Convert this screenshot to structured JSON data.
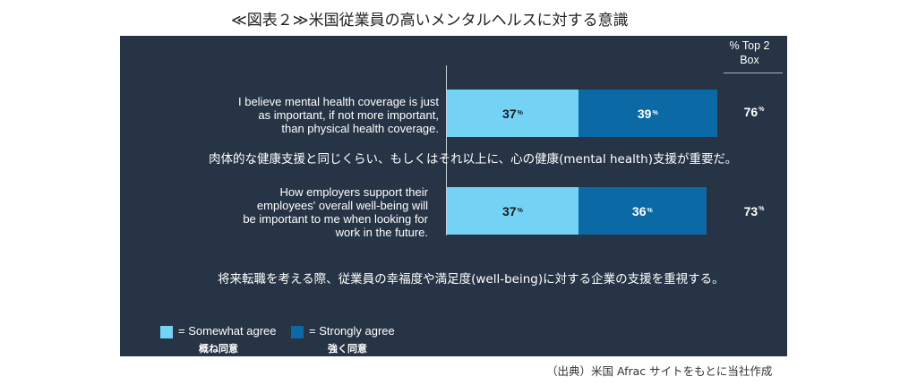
{
  "figure_title": "≪図表２≫米国従業員の高いメンタルヘルスに対する意識",
  "source": "（出典）米国 Afrac サイトをもとに当社作成",
  "colors": {
    "panel": "#263445",
    "somewhat": "#74d3f5",
    "strongly": "#0b6aa6"
  },
  "chart_data": {
    "type": "bar",
    "orientation": "horizontal",
    "stacked": true,
    "column_header": "% Top 2 Box",
    "column_header_lines": [
      "% Top 2",
      "Box"
    ],
    "pct_suffix": "%",
    "categories": [
      "I believe mental health coverage is just as important, if not more important, than physical health coverage.",
      "How employers support their employees' overall well-being will be important to me when looking for work in the future."
    ],
    "category_lines": [
      [
        "I believe mental health coverage is just",
        "as important, if not more important,",
        "than physical health coverage."
      ],
      [
        "How employers support their",
        "employees' overall well-being will",
        "be important to me when looking for",
        "work in the future."
      ]
    ],
    "category_translations": [
      "肉体的な健康支援と同じくらい、もしくはそれ以上に、心の健康(mental health)支援が重要だ。",
      "将来転職を考える際、従業員の幸福度や満足度(well-being)に対する企業の支援を重視する。"
    ],
    "series": [
      {
        "name": "Somewhat agree",
        "name_ja": "概ね同意",
        "values": [
          37,
          37
        ]
      },
      {
        "name": "Strongly agree",
        "name_ja": "強く同意",
        "values": [
          39,
          36
        ]
      }
    ],
    "top2_box": [
      76,
      73
    ],
    "legend_placement": "bottom-left",
    "xlim": [
      0,
      100
    ],
    "grid": false
  }
}
